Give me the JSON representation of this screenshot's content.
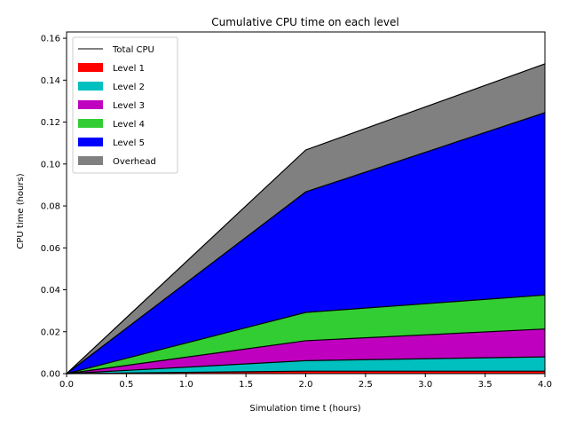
{
  "chart_data": {
    "type": "area",
    "title": "Cumulative CPU time on each level",
    "xlabel": "Simulation time t (hours)",
    "ylabel": "CPU time (hours)",
    "xlim": [
      0.0,
      4.0
    ],
    "ylim": [
      0.0,
      0.163
    ],
    "x_ticks": [
      "0.0",
      "0.5",
      "1.0",
      "1.5",
      "2.0",
      "2.5",
      "3.0",
      "3.5",
      "4.0"
    ],
    "y_ticks": [
      "0.00",
      "0.02",
      "0.04",
      "0.06",
      "0.08",
      "0.10",
      "0.12",
      "0.14",
      "0.16"
    ],
    "grid": false,
    "legend_position": "top-left",
    "x": [
      0.0,
      2.0,
      4.0
    ],
    "series": [
      {
        "name": "Level 1",
        "color": "#ff0000",
        "values": [
          0.0,
          0.0012,
          0.0012
        ]
      },
      {
        "name": "Level 2",
        "color": "#00bfbf",
        "values": [
          0.0,
          0.005,
          0.0068
        ]
      },
      {
        "name": "Level 3",
        "color": "#bf00bf",
        "values": [
          0.0,
          0.0095,
          0.0133
        ]
      },
      {
        "name": "Level 4",
        "color": "#32cd32",
        "values": [
          0.0,
          0.0135,
          0.0162
        ]
      },
      {
        "name": "Level 5",
        "color": "#0000ff",
        "values": [
          0.0,
          0.0575,
          0.087
        ]
      },
      {
        "name": "Overhead",
        "color": "#808080",
        "values": [
          0.0,
          0.02,
          0.0233
        ]
      }
    ],
    "total_line": {
      "name": "Total CPU",
      "color": "#000000"
    }
  }
}
